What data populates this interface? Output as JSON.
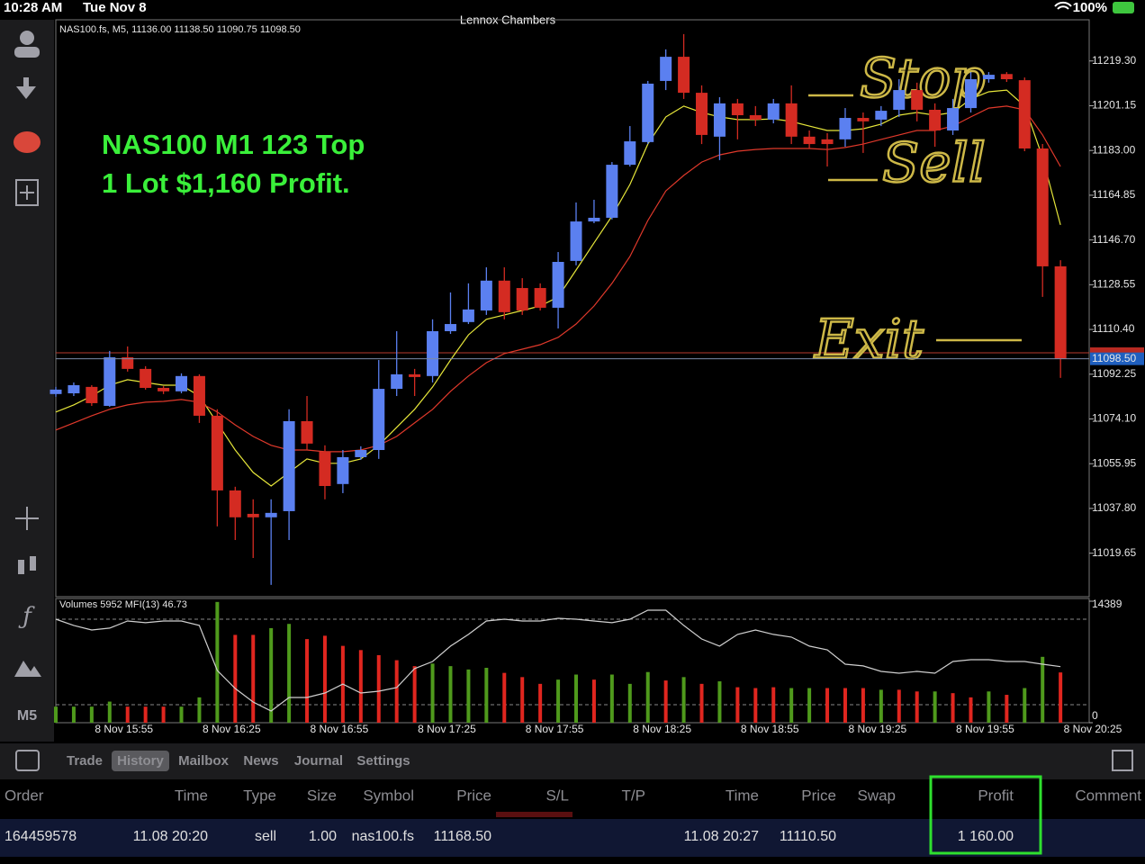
{
  "status_bar": {
    "time": "10:28 AM",
    "date": "Tue Nov 8",
    "center": "Lennox Chambers",
    "battery": "100%"
  },
  "toolbar": {
    "timeframe": "M5"
  },
  "chart_data": [
    {
      "type": "candlestick",
      "title": "NAS100.fs, M5, 11136.00 11138.50 11090.75 11098.50",
      "annotations": [
        "NAS100 M1 123 Top",
        "1 Lot $1,160 Profit.",
        "Stop",
        "Sell",
        "Exit"
      ],
      "categories": [
        null,
        null,
        null,
        null,
        "8 Nov 15:55",
        null,
        null,
        null,
        null,
        null,
        "8 Nov 16:25",
        null,
        null,
        null,
        null,
        null,
        "8 Nov 16:55",
        null,
        null,
        null,
        null,
        null,
        "8 Nov 17:25",
        null,
        null,
        null,
        null,
        null,
        "8 Nov 17:55",
        null,
        null,
        null,
        null,
        null,
        "8 Nov 18:25",
        null,
        null,
        null,
        null,
        null,
        "8 Nov 18:55",
        null,
        null,
        null,
        null,
        null,
        "8 Nov 19:25",
        null,
        null,
        null,
        null,
        null,
        "8 Nov 19:55",
        null,
        null,
        null,
        null,
        null,
        "8 Nov 20:25"
      ],
      "ohlc": [
        [
          11084.2,
          11087.1,
          11083.1,
          11086.0
        ],
        [
          11084.5,
          11088.9,
          11083.4,
          11087.8
        ],
        [
          11087.1,
          11087.8,
          11079.4,
          11080.5
        ],
        [
          11079.4,
          11101.7,
          11079.0,
          11099.1
        ],
        [
          11099.1,
          11103.5,
          11093.3,
          11094.4
        ],
        [
          11094.4,
          11095.5,
          11086.0,
          11086.7
        ],
        [
          11086.7,
          11087.4,
          11084.2,
          11085.3
        ],
        [
          11085.3,
          11092.6,
          11084.5,
          11091.5
        ],
        [
          11091.5,
          11092.2,
          11072.5,
          11075.4
        ],
        [
          11075.4,
          11078.0,
          11030.5,
          11045.1
        ],
        [
          11045.1,
          11046.6,
          11025.0,
          11034.2
        ],
        [
          11035.6,
          11041.5,
          11017.7,
          11034.2
        ],
        [
          11034.2,
          11041.5,
          11006.8,
          11036.0
        ],
        [
          11036.7,
          11078.0,
          11025.0,
          11073.2
        ],
        [
          11073.2,
          11083.4,
          11061.5,
          11064.1
        ],
        [
          11060.8,
          11063.4,
          11041.5,
          11046.9
        ],
        [
          11047.7,
          11061.5,
          11044.0,
          11058.6
        ],
        [
          11058.6,
          11063.0,
          11057.5,
          11061.5
        ],
        [
          11061.5,
          11098.0,
          11057.9,
          11086.3
        ],
        [
          11086.3,
          11109.7,
          11083.4,
          11092.2
        ],
        [
          11092.2,
          11094.4,
          11083.4,
          11091.1
        ],
        [
          11091.5,
          11114.5,
          11088.9,
          11109.7
        ],
        [
          11109.7,
          11125.4,
          11108.6,
          11112.6
        ],
        [
          11113.4,
          11129.1,
          11112.6,
          11118.5
        ],
        [
          11118.1,
          11135.6,
          11116.3,
          11130.2
        ],
        [
          11130.2,
          11135.6,
          11114.5,
          11117.4
        ],
        [
          11127.2,
          11131.2,
          11116.3,
          11118.1
        ],
        [
          11127.2,
          11129.1,
          11118.1,
          11119.2
        ],
        [
          11119.2,
          11141.8,
          11110.8,
          11137.8
        ],
        [
          11138.2,
          11161.9,
          11136.4,
          11154.2
        ],
        [
          11154.2,
          11163.0,
          11153.5,
          11155.7
        ],
        [
          11155.7,
          11178.3,
          11155.0,
          11177.2
        ],
        [
          11177.2,
          11192.9,
          11176.5,
          11186.7
        ],
        [
          11186.4,
          11211.2,
          11185.6,
          11210.1
        ],
        [
          11211.2,
          11224.0,
          11207.5,
          11221.0
        ],
        [
          11221.0,
          11230.2,
          11203.9,
          11206.4
        ],
        [
          11206.4,
          11209.4,
          11185.6,
          11189.3
        ],
        [
          11188.6,
          11204.6,
          11179.1,
          11202.1
        ],
        [
          11202.1,
          11203.9,
          11187.5,
          11197.3
        ],
        [
          11197.3,
          11201.0,
          11192.9,
          11195.5
        ],
        [
          11195.5,
          11203.9,
          11194.0,
          11202.1
        ],
        [
          11202.1,
          11209.4,
          11185.6,
          11188.6
        ],
        [
          11188.6,
          11191.1,
          11183.8,
          11185.6
        ],
        [
          11187.5,
          11190.0,
          11176.5,
          11185.6
        ],
        [
          11187.5,
          11200.2,
          11184.5,
          11196.2
        ],
        [
          11196.2,
          11198.4,
          11182.0,
          11194.8
        ],
        [
          11195.5,
          11201.0,
          11192.9,
          11199.1
        ],
        [
          11199.5,
          11211.9,
          11196.6,
          11207.5
        ],
        [
          11207.5,
          11210.5,
          11194.8,
          11199.5
        ],
        [
          11199.5,
          11202.1,
          11184.5,
          11191.1
        ],
        [
          11191.1,
          11203.9,
          11189.3,
          11200.2
        ],
        [
          11200.2,
          11214.8,
          11198.4,
          11211.9
        ],
        [
          11211.9,
          11214.8,
          11210.5,
          11213.7
        ],
        [
          11214.0,
          11214.8,
          11210.8,
          11211.9
        ],
        [
          11211.5,
          11212.6,
          11182.7,
          11183.8
        ],
        [
          11183.8,
          11185.6,
          11123.6,
          11136.0
        ],
        [
          11136.0,
          11138.5,
          11090.75,
          11098.5
        ],
        null,
        null
      ],
      "up_color": "#5b80f0",
      "down_color": "#d42b22",
      "series": [
        {
          "color": "#e6e63a",
          "values": [
            11076.9,
            11079.8,
            11083.4,
            11087.8,
            11090.0,
            11088.9,
            11087.8,
            11087.8,
            11083.4,
            11072.5,
            11061.5,
            11052.4,
            11046.9,
            11052.4,
            11057.9,
            11056.1,
            11056.1,
            11057.9,
            11063.4,
            11070.7,
            11078.0,
            11087.1,
            11098.0,
            11108.2,
            11114.5,
            11116.3,
            11118.1,
            11119.9,
            11123.6,
            11134.5,
            11145.5,
            11156.4,
            11169.2,
            11185.6,
            11196.6,
            11201.0,
            11198.4,
            11196.6,
            11195.5,
            11195.5,
            11195.8,
            11194.8,
            11192.9,
            11191.1,
            11191.1,
            11191.8,
            11193.7,
            11197.3,
            11198.4,
            11197.3,
            11198.4,
            11203.9,
            11206.8,
            11207.5,
            11201.0,
            11180.2,
            11152.8,
            null,
            null
          ]
        },
        {
          "color": "#e0392b",
          "values": [
            11069.6,
            11072.5,
            11075.4,
            11078.0,
            11079.8,
            11080.9,
            11081.2,
            11082.0,
            11080.9,
            11076.9,
            11071.7,
            11067.0,
            11063.4,
            11061.5,
            11061.5,
            11060.8,
            11060.8,
            11061.5,
            11063.4,
            11067.0,
            11072.5,
            11078.0,
            11085.3,
            11091.5,
            11096.9,
            11100.6,
            11102.4,
            11104.2,
            11107.2,
            11112.6,
            11119.9,
            11129.1,
            11140.0,
            11154.6,
            11166.6,
            11172.9,
            11178.3,
            11181.2,
            11182.7,
            11183.4,
            11183.8,
            11183.8,
            11183.8,
            11183.4,
            11184.2,
            11185.6,
            11187.5,
            11189.3,
            11191.1,
            11191.1,
            11192.9,
            11196.6,
            11200.2,
            11201.0,
            11199.5,
            11189.3,
            11176.5,
            null,
            null
          ]
        }
      ],
      "current_price": {
        "value": 11098.5,
        "label": "11098.50"
      },
      "ylim": [
        11002,
        11236
      ],
      "yticks": [
        {
          "value": 11219.3,
          "label": "11219.30"
        },
        {
          "value": 11201.15,
          "label": "11201.15"
        },
        {
          "value": 11183,
          "label": "11183.00"
        },
        {
          "value": 11164.85,
          "label": "11164.85"
        },
        {
          "value": 11146.7,
          "label": "11146.70"
        },
        {
          "value": 11128.55,
          "label": "11128.55"
        },
        {
          "value": 11110.4,
          "label": "11110.40"
        },
        {
          "value": 11092.25,
          "label": "11092.25"
        },
        {
          "value": 11074.1,
          "label": "11074.10"
        },
        {
          "value": 11055.95,
          "label": "11055.95"
        },
        {
          "value": 11037.8,
          "label": "11037.80"
        },
        {
          "value": 11019.65,
          "label": "11019.65"
        }
      ]
    },
    {
      "type": "bar",
      "title": "Volumes 5952 MFI(13) 46.73",
      "values": [
        1900,
        1900,
        1900,
        2500,
        1900,
        1900,
        1900,
        1900,
        3000,
        14300,
        10400,
        10400,
        11200,
        11700,
        9900,
        10300,
        9100,
        8600,
        8000,
        7400,
        6700,
        7000,
        6700,
        6300,
        6500,
        5900,
        5400,
        4600,
        5100,
        5700,
        5100,
        5700,
        4600,
        6000,
        5000,
        5400,
        4600,
        4900,
        4200,
        4100,
        4200,
        4100,
        4100,
        4100,
        4100,
        4100,
        3900,
        3900,
        3700,
        3700,
        3500,
        3000,
        3700,
        3300,
        4100,
        7800,
        5952,
        null,
        null
      ],
      "colors": [
        "#4f9a1c",
        "#4f9a1c",
        "#4f9a1c",
        "#4f9a1c",
        "#e0261f",
        "#e0261f",
        "#e0261f",
        "#4f9a1c",
        "#4f9a1c",
        "#4f9a1c",
        "#e0261f",
        "#e0261f",
        "#4f9a1c",
        "#4f9a1c",
        "#e0261f",
        "#e0261f",
        "#e0261f",
        "#e0261f",
        "#e0261f",
        "#e0261f",
        "#e0261f",
        "#4f9a1c",
        "#4f9a1c",
        "#4f9a1c",
        "#4f9a1c",
        "#e0261f",
        "#e0261f",
        "#e0261f",
        "#4f9a1c",
        "#4f9a1c",
        "#e0261f",
        "#4f9a1c",
        "#4f9a1c",
        "#4f9a1c",
        "#e0261f",
        "#4f9a1c",
        "#e0261f",
        "#4f9a1c",
        "#e0261f",
        "#e0261f",
        "#e0261f",
        "#4f9a1c",
        "#4f9a1c",
        "#e0261f",
        "#e0261f",
        "#e0261f",
        "#4f9a1c",
        "#e0261f",
        "#e0261f",
        "#4f9a1c",
        "#e0261f",
        "#e0261f",
        "#4f9a1c",
        "#e0261f",
        "#4f9a1c",
        "#4f9a1c",
        "#e0261f",
        null,
        null
      ],
      "ylim": [
        0,
        14389
      ],
      "yticks": [
        0,
        14389
      ],
      "y2lim": [
        7.4,
        92.6
      ],
      "series": [
        {
          "color": "#cfcfcf",
          "axis": "y2",
          "values": [
            80.0,
            75.6,
            72.4,
            73.7,
            78.7,
            77.5,
            78.7,
            78.7,
            75.6,
            44.0,
            31.4,
            21.9,
            15.6,
            25.1,
            25.1,
            28.2,
            34.5,
            28.2,
            29.5,
            32.0,
            45.3,
            50.3,
            61.1,
            69.3,
            78.7,
            80.0,
            78.7,
            78.7,
            80.6,
            80.0,
            78.7,
            77.5,
            80.0,
            86.3,
            86.3,
            75.6,
            66.1,
            61.1,
            69.3,
            72.4,
            69.3,
            67.4,
            61.1,
            58.5,
            48.4,
            47.2,
            43.4,
            42.1,
            43.4,
            42.1,
            50.3,
            51.6,
            51.6,
            50.3,
            50.3,
            48.4,
            46.73,
            null,
            null
          ]
        }
      ]
    }
  ],
  "tabs": {
    "items": [
      "Trade",
      "History",
      "Mailbox",
      "News",
      "Journal",
      "Settings"
    ],
    "selected": 1
  },
  "table": {
    "columns": [
      "Order",
      "Time",
      "Type",
      "Size",
      "Symbol",
      "Price",
      "S/L",
      "T/P",
      "Time",
      "Price",
      "Swap",
      "Profit",
      "Comment"
    ],
    "rows": [
      [
        "164459578",
        "11.08 20:20",
        "sell",
        "1.00",
        "nas100.fs",
        "11168.50",
        null,
        null,
        "11.08 20:27",
        "11110.50",
        null,
        "1 160.00",
        null
      ]
    ]
  }
}
